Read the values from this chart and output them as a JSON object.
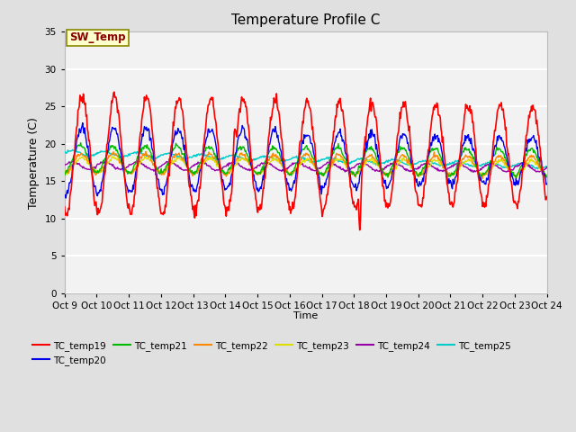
{
  "title": "Temperature Profile C",
  "xlabel": "Time",
  "ylabel": "Temperature (C)",
  "ylim": [
    0,
    35
  ],
  "yticks": [
    0,
    5,
    10,
    15,
    20,
    25,
    30,
    35
  ],
  "x_labels": [
    "Oct 9",
    "Oct 10",
    "Oct 11",
    "Oct 12",
    "Oct 13",
    "Oct 14",
    "Oct 15",
    "Oct 16",
    "Oct 17",
    "Oct 18",
    "Oct 19",
    "Oct 20",
    "Oct 21",
    "Oct 22",
    "Oct 23",
    "Oct 24"
  ],
  "series_colors": {
    "TC_temp19": "#ff0000",
    "TC_temp20": "#0000ee",
    "TC_temp21": "#00bb00",
    "TC_temp22": "#ff8800",
    "TC_temp23": "#dddd00",
    "TC_temp24": "#9900aa",
    "TC_temp25": "#00cccc"
  },
  "sw_temp_label": "SW_Temp",
  "sw_temp_box_color": "#ffffcc",
  "sw_temp_border_color": "#888800",
  "sw_temp_text_color": "#880000",
  "background_color": "#e0e0e0",
  "plot_bg_color": "#f2f2f2",
  "grid_color": "#ffffff",
  "n_days": 15,
  "pts_per_day": 48,
  "figsize": [
    6.4,
    4.8
  ],
  "dpi": 100
}
